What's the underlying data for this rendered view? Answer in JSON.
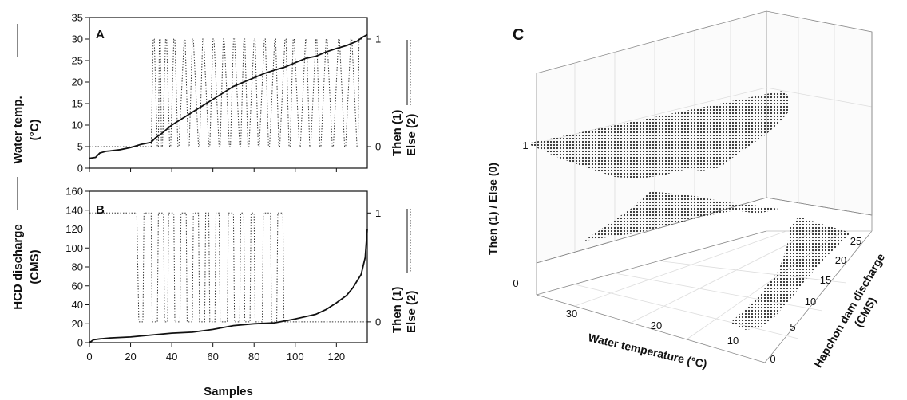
{
  "chart_data": [
    {
      "panel": "A",
      "type": "line",
      "ylabel_line1": "Water temp.",
      "ylabel_line2": "(°C)",
      "ylabel_right_line1": "Then (1)",
      "ylabel_right_line2": "Else  (2)",
      "xlim": [
        0,
        135
      ],
      "ylim": [
        0,
        35
      ],
      "yticks": [
        "0",
        "5",
        "10",
        "15",
        "20",
        "25",
        "30",
        "35"
      ],
      "right_ticks": [
        "0",
        "1"
      ],
      "series": [
        {
          "style": "solid",
          "x": [
            0,
            3,
            5,
            8,
            10,
            15,
            20,
            25,
            30,
            32,
            35,
            40,
            45,
            50,
            55,
            60,
            65,
            70,
            75,
            80,
            85,
            90,
            95,
            100,
            105,
            110,
            115,
            120,
            125,
            130,
            133,
            135
          ],
          "values": [
            2.3,
            2.5,
            3.5,
            3.9,
            4.0,
            4.3,
            4.8,
            5.5,
            6.0,
            7.0,
            8.0,
            10.0,
            11.5,
            13.0,
            14.5,
            16.0,
            17.5,
            19.0,
            20.0,
            21.0,
            22.0,
            22.8,
            23.5,
            24.5,
            25.5,
            26.0,
            27.0,
            27.8,
            28.5,
            29.5,
            30.5,
            31.0
          ]
        },
        {
          "style": "dotted",
          "x": [
            0,
            30,
            31,
            31.5,
            33,
            33.5,
            34,
            34.5,
            35,
            35.5,
            37,
            37.5,
            39,
            39.5,
            41,
            41.5,
            43,
            43.5,
            46,
            46.5,
            48,
            48.5,
            50,
            50.5,
            53,
            53.5,
            55,
            55.5,
            58,
            58.5,
            60,
            60.5,
            63,
            63.5,
            65,
            65.5,
            68,
            68.5,
            70,
            70.5,
            73,
            73.5,
            75,
            75.5,
            77,
            77.5,
            80,
            80.5,
            82,
            82.5,
            85,
            85.5,
            87,
            87.5,
            90,
            90.5,
            92,
            92.5,
            95,
            95.5,
            97,
            97.5,
            99,
            99.5,
            102,
            102.5,
            105,
            105.5,
            107,
            107.5,
            110,
            110.5,
            112,
            112.5,
            115,
            115.5,
            118,
            118.5,
            121,
            121.5,
            124,
            124.5,
            127,
            127.5,
            130,
            130.5,
            131,
            133
          ],
          "values": [
            0,
            0,
            1,
            1,
            0,
            0,
            1,
            1,
            0,
            0,
            1,
            1,
            0,
            0,
            1,
            1,
            0,
            0,
            1,
            1,
            0,
            0,
            1,
            1,
            0,
            0,
            1,
            1,
            0,
            0,
            1,
            1,
            0,
            0,
            1,
            1,
            0,
            0,
            1,
            1,
            0,
            0,
            1,
            1,
            0,
            0,
            1,
            1,
            0,
            0,
            1,
            1,
            0,
            0,
            1,
            1,
            0,
            0,
            1,
            1,
            0,
            0,
            1,
            1,
            0,
            0,
            1,
            1,
            0,
            0,
            1,
            1,
            0,
            0,
            1,
            1,
            0,
            0,
            1,
            1,
            0,
            0,
            1,
            1,
            0,
            0,
            1,
            1
          ]
        }
      ]
    },
    {
      "panel": "B",
      "type": "line",
      "ylabel_line1": "HCD discharge",
      "ylabel_line2": "(CMS)",
      "ylabel_right_line1": "Then (1)",
      "ylabel_right_line2": "Else  (2)",
      "xlabel": "Samples",
      "xlim": [
        0,
        135
      ],
      "ylim": [
        0,
        160
      ],
      "xticks": [
        "0",
        "20",
        "40",
        "60",
        "80",
        "100",
        "120"
      ],
      "yticks": [
        "0",
        "20",
        "40",
        "60",
        "80",
        "100",
        "120",
        "140",
        "160"
      ],
      "right_ticks": [
        "0",
        "1"
      ],
      "series": [
        {
          "style": "solid",
          "x": [
            0,
            2,
            5,
            10,
            20,
            30,
            40,
            50,
            60,
            70,
            80,
            90,
            100,
            110,
            115,
            120,
            125,
            128,
            130,
            132,
            134,
            135
          ],
          "values": [
            0,
            3,
            4,
            5,
            6,
            8,
            10,
            11,
            14,
            18,
            20,
            21,
            25,
            30,
            35,
            42,
            50,
            58,
            65,
            72,
            90,
            120
          ]
        },
        {
          "style": "dotted",
          "x": [
            0,
            22,
            23,
            24,
            26,
            26.5,
            30,
            30.5,
            33,
            33.5,
            36,
            36.5,
            38,
            38.5,
            41,
            41.5,
            44,
            44.5,
            47,
            47.5,
            50,
            50.5,
            53,
            53.5,
            56,
            56.5,
            58,
            58.5,
            61,
            61.5,
            63,
            63.5,
            67,
            67.5,
            70,
            70.5,
            73,
            73.5,
            75,
            75.5,
            78,
            78.5,
            80,
            80.5,
            84,
            84.5,
            88,
            88.5,
            91,
            91.5,
            94,
            94.5,
            95,
            95.5,
            135
          ],
          "values": [
            1,
            1,
            1,
            0,
            0,
            1,
            1,
            0,
            0,
            1,
            1,
            0,
            0,
            1,
            1,
            0,
            0,
            1,
            1,
            0,
            0,
            1,
            1,
            0,
            0,
            1,
            1,
            0,
            0,
            1,
            1,
            0,
            0,
            1,
            1,
            0,
            0,
            1,
            1,
            0,
            0,
            1,
            1,
            0,
            0,
            1,
            1,
            0,
            0,
            1,
            1,
            0,
            0,
            0,
            0
          ]
        }
      ]
    },
    {
      "panel": "C",
      "type": "scatter",
      "xlabel": "Water temperature (°C)",
      "ylabel_line1": "Hapchon dam discharge",
      "ylabel_line2": "(CMS)",
      "zlabel": "Then (1) / Else (0)",
      "xticks": [
        "10",
        "20",
        "30"
      ],
      "yticks": [
        "0",
        "5",
        "10",
        "15",
        "20",
        "25"
      ],
      "zticks": [
        "0",
        "1"
      ]
    }
  ]
}
